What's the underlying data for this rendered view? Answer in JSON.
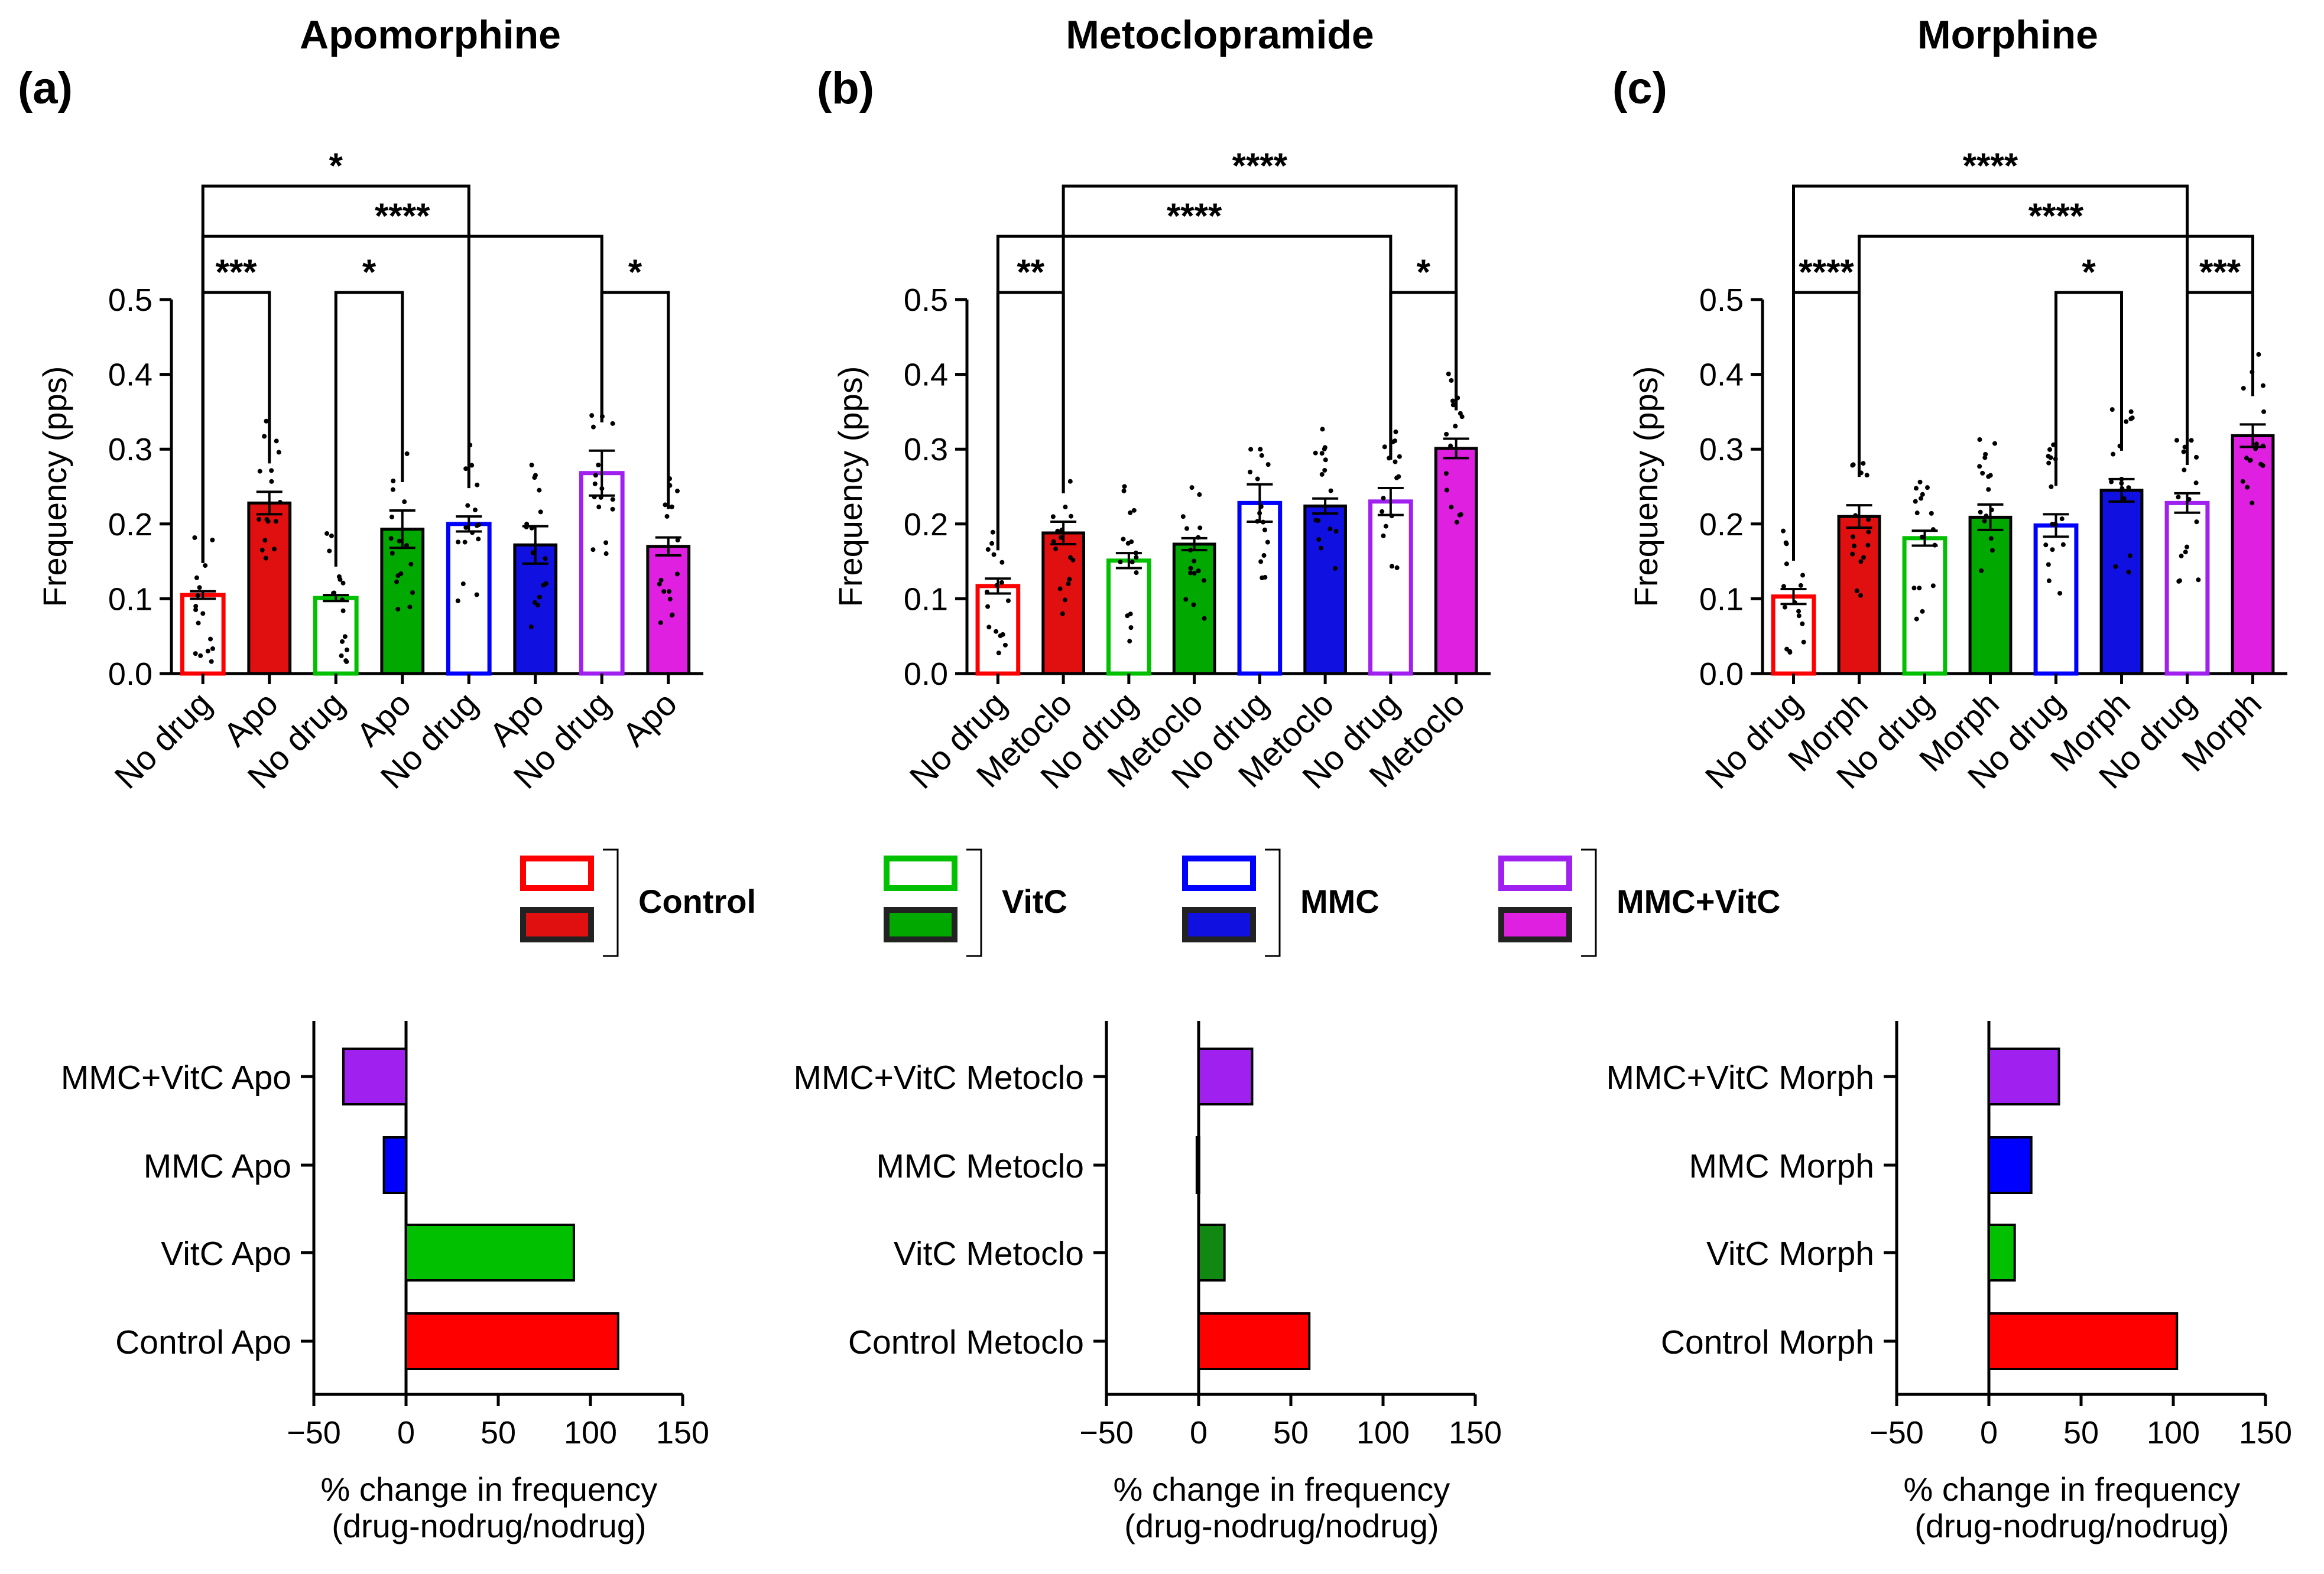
{
  "chart_data": [
    {
      "type": "bar",
      "panel_label": "(a)",
      "title": "Apomorphine",
      "ylabel": "Frequency (pps)",
      "ylim": [
        0,
        0.5
      ],
      "yticks": [
        "0.0",
        "0.1",
        "0.2",
        "0.3",
        "0.4",
        "0.5"
      ],
      "categories": [
        "No drug",
        "Apo",
        "No drug",
        "Apo",
        "No drug",
        "Apo",
        "No drug",
        "Apo"
      ],
      "values": [
        0.105,
        0.228,
        0.101,
        0.193,
        0.2,
        0.172,
        0.268,
        0.17
      ],
      "errors": [
        0.005,
        0.015,
        0.004,
        0.025,
        0.01,
        0.025,
        0.03,
        0.012
      ],
      "groups": [
        "Control",
        "Control",
        "VitC",
        "VitC",
        "MMC",
        "MMC",
        "MMC+VitC",
        "MMC+VitC"
      ],
      "significance": [
        {
          "from": 0,
          "to": 1,
          "label": "***"
        },
        {
          "from": 2,
          "to": 3,
          "label": "*"
        },
        {
          "from": 6,
          "to": 7,
          "label": "*"
        },
        {
          "from": 0,
          "to": 6,
          "label": "****"
        },
        {
          "from": 0,
          "to": 4,
          "label": "*"
        }
      ]
    },
    {
      "type": "bar",
      "panel_label": "(b)",
      "title": "Metoclopramide",
      "ylabel": "Frequency (pps)",
      "ylim": [
        0,
        0.5
      ],
      "yticks": [
        "0.0",
        "0.1",
        "0.2",
        "0.3",
        "0.4",
        "0.5"
      ],
      "categories": [
        "No drug",
        "Metoclo",
        "No drug",
        "Metoclo",
        "No drug",
        "Metoclo",
        "No drug",
        "Metoclo"
      ],
      "values": [
        0.117,
        0.188,
        0.151,
        0.173,
        0.228,
        0.224,
        0.23,
        0.301
      ],
      "errors": [
        0.01,
        0.015,
        0.01,
        0.008,
        0.025,
        0.01,
        0.018,
        0.013
      ],
      "groups": [
        "Control",
        "Control",
        "VitC",
        "VitC",
        "MMC",
        "MMC",
        "MMC+VitC",
        "MMC+VitC"
      ],
      "significance": [
        {
          "from": 0,
          "to": 1,
          "label": "**"
        },
        {
          "from": 6,
          "to": 7,
          "label": "*"
        },
        {
          "from": 0,
          "to": 6,
          "label": "****"
        },
        {
          "from": 1,
          "to": 7,
          "label": "****"
        }
      ]
    },
    {
      "type": "bar",
      "panel_label": "(c)",
      "title": "Morphine",
      "ylabel": "Frequency (pps)",
      "ylim": [
        0,
        0.5
      ],
      "yticks": [
        "0.0",
        "0.1",
        "0.2",
        "0.3",
        "0.4",
        "0.5"
      ],
      "categories": [
        "No drug",
        "Morph",
        "No drug",
        "Morph",
        "No drug",
        "Morph",
        "No drug",
        "Morph"
      ],
      "values": [
        0.103,
        0.21,
        0.181,
        0.209,
        0.198,
        0.245,
        0.228,
        0.318
      ],
      "errors": [
        0.01,
        0.015,
        0.01,
        0.017,
        0.015,
        0.015,
        0.013,
        0.015
      ],
      "groups": [
        "Control",
        "Control",
        "VitC",
        "VitC",
        "MMC",
        "MMC",
        "MMC+VitC",
        "MMC+VitC"
      ],
      "significance": [
        {
          "from": 0,
          "to": 1,
          "label": "****"
        },
        {
          "from": 4,
          "to": 5,
          "label": "*"
        },
        {
          "from": 6,
          "to": 7,
          "label": "***"
        },
        {
          "from": 1,
          "to": 7,
          "label": "****"
        },
        {
          "from": 0,
          "to": 6,
          "label": "****"
        }
      ]
    },
    {
      "type": "bar",
      "orientation": "horizontal",
      "categories": [
        "MMC+VitC Apo",
        "MMC Apo",
        "VitC Apo",
        "Control Apo"
      ],
      "values": [
        -34,
        -12,
        91,
        115
      ],
      "xlim": [
        -50,
        150
      ],
      "xticks": [
        "−50",
        "0",
        "50",
        "100",
        "150"
      ],
      "xlabel": [
        "% change in frequency",
        "(drug-nodrug/nodrug)"
      ]
    },
    {
      "type": "bar",
      "orientation": "horizontal",
      "categories": [
        "MMC+VitC Metoclo",
        "MMC Metoclo",
        "VitC Metoclo",
        "Control Metoclo"
      ],
      "values": [
        29,
        -1,
        14,
        60
      ],
      "xlim": [
        -50,
        150
      ],
      "xticks": [
        "−50",
        "0",
        "50",
        "100",
        "150"
      ],
      "xlabel": [
        "% change in frequency",
        "(drug-nodrug/nodrug)"
      ]
    },
    {
      "type": "bar",
      "orientation": "horizontal",
      "categories": [
        "MMC+VitC Morph",
        "MMC Morph",
        "VitC Morph",
        "Control Morph"
      ],
      "values": [
        38,
        23,
        14,
        102
      ],
      "xlim": [
        -50,
        150
      ],
      "xticks": [
        "−50",
        "0",
        "50",
        "100",
        "150"
      ],
      "xlabel": [
        "% change in frequency",
        "(drug-nodrug/nodrug)"
      ]
    }
  ],
  "legend": [
    {
      "name": "Control",
      "color": "#ff0000"
    },
    {
      "name": "VitC",
      "color": "#00c000"
    },
    {
      "name": "MMC",
      "color": "#0000ff"
    },
    {
      "name": "MMC+VitC",
      "color": "#a020f0"
    }
  ],
  "group_colors": {
    "Control": "#ff0000",
    "VitC": "#00c000",
    "MMC": "#0000ff",
    "MMC+VitC": "#a020f0"
  },
  "hbar_colors": [
    [
      "#a020f0",
      "#0000ff",
      "#00c000",
      "#ff0000"
    ],
    [
      "#a020f0",
      "#0000ff",
      "#118811",
      "#ff0000"
    ],
    [
      "#a020f0",
      "#0000ff",
      "#00c000",
      "#ff0000"
    ]
  ],
  "dark_fill": {
    "Control": "#e01010",
    "VitC": "#00a800",
    "MMC": "#1010e0",
    "MMC+VitC": "#e020e0"
  }
}
